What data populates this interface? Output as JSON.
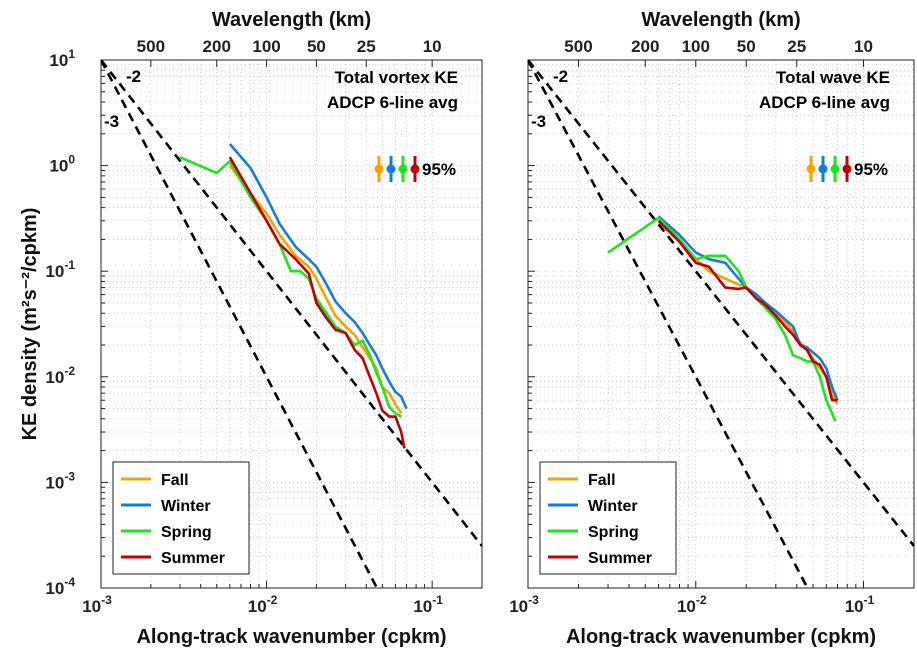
{
  "chart_data": [
    {
      "type": "line",
      "title": "",
      "xlabel": "Along-track wavenumber (cpkm)",
      "ylabel": "KE density (m²s⁻²/cpkm)",
      "top_axis_label": "Wavelength (km)",
      "top_ticks": [
        500,
        200,
        100,
        50,
        25,
        10
      ],
      "xscale": "log",
      "yscale": "log",
      "xlim": [
        0.001,
        0.2
      ],
      "ylim": [
        0.0001,
        10
      ],
      "grid": "minor-dotted",
      "annotation_lines": [
        "Total vortex KE",
        "ADCP 6-line avg"
      ],
      "slope_lines": [
        {
          "label": "-2",
          "slope": -2,
          "x": [
            0.001,
            0.2
          ],
          "y": [
            10,
            0.00025
          ]
        },
        {
          "label": "-3",
          "slope": -3,
          "x": [
            0.001,
            0.0464
          ],
          "y": [
            10,
            0.0001
          ]
        }
      ],
      "ci_label": "95%",
      "legend": {
        "placement": "bottom-left",
        "entries": [
          "Fall",
          "Winter",
          "Spring",
          "Summer"
        ]
      },
      "series": [
        {
          "name": "Fall",
          "color": "#f5a300",
          "x": [
            0.006,
            0.008,
            0.01,
            0.012,
            0.015,
            0.018,
            0.02,
            0.023,
            0.026,
            0.03,
            0.034,
            0.038,
            0.042,
            0.046,
            0.05,
            0.055,
            0.06,
            0.065
          ],
          "y": [
            1.0,
            0.55,
            0.35,
            0.22,
            0.14,
            0.11,
            0.085,
            0.055,
            0.038,
            0.03,
            0.025,
            0.019,
            0.015,
            0.012,
            0.008,
            0.007,
            0.0055,
            0.0045
          ]
        },
        {
          "name": "Winter",
          "color": "#1a7bd6",
          "x": [
            0.006,
            0.008,
            0.01,
            0.012,
            0.015,
            0.018,
            0.02,
            0.023,
            0.026,
            0.03,
            0.034,
            0.038,
            0.042,
            0.046,
            0.05,
            0.055,
            0.06,
            0.065,
            0.07
          ],
          "y": [
            1.6,
            0.95,
            0.5,
            0.28,
            0.17,
            0.13,
            0.11,
            0.075,
            0.052,
            0.04,
            0.033,
            0.026,
            0.02,
            0.016,
            0.012,
            0.009,
            0.0072,
            0.0065,
            0.005
          ]
        },
        {
          "name": "Spring",
          "color": "#22e022",
          "x": [
            0.003,
            0.005,
            0.006,
            0.008,
            0.01,
            0.012,
            0.014,
            0.016,
            0.018,
            0.02,
            0.023,
            0.026,
            0.03,
            0.034,
            0.038,
            0.042,
            0.046,
            0.05,
            0.055,
            0.06,
            0.065
          ],
          "y": [
            1.2,
            0.85,
            1.1,
            0.5,
            0.3,
            0.18,
            0.1,
            0.1,
            0.085,
            0.055,
            0.04,
            0.03,
            0.026,
            0.02,
            0.022,
            0.016,
            0.011,
            0.008,
            0.0052,
            0.0045,
            0.0042
          ]
        },
        {
          "name": "Summer",
          "color": "#c00000",
          "x": [
            0.006,
            0.008,
            0.01,
            0.012,
            0.015,
            0.018,
            0.02,
            0.023,
            0.026,
            0.03,
            0.034,
            0.038,
            0.042,
            0.046,
            0.05,
            0.055,
            0.06,
            0.065,
            0.068
          ],
          "y": [
            1.2,
            0.55,
            0.3,
            0.18,
            0.13,
            0.095,
            0.05,
            0.036,
            0.028,
            0.026,
            0.018,
            0.015,
            0.01,
            0.007,
            0.0048,
            0.0042,
            0.0042,
            0.003,
            0.0021
          ]
        }
      ]
    },
    {
      "type": "line",
      "title": "",
      "xlabel": "Along-track wavenumber (cpkm)",
      "ylabel": "",
      "top_axis_label": "Wavelength (km)",
      "top_ticks": [
        500,
        200,
        100,
        50,
        25,
        10
      ],
      "xscale": "log",
      "yscale": "log",
      "xlim": [
        0.001,
        0.2
      ],
      "ylim": [
        0.0001,
        10
      ],
      "grid": "minor-dotted",
      "annotation_lines": [
        "Total wave KE",
        "ADCP 6-line avg"
      ],
      "slope_lines": [
        {
          "label": "-2",
          "slope": -2,
          "x": [
            0.001,
            0.2
          ],
          "y": [
            10,
            0.00025
          ]
        },
        {
          "label": "-3",
          "slope": -3,
          "x": [
            0.001,
            0.0464
          ],
          "y": [
            10,
            0.0001
          ]
        }
      ],
      "ci_label": "95%",
      "legend": {
        "placement": "bottom-left",
        "entries": [
          "Fall",
          "Winter",
          "Spring",
          "Summer"
        ]
      },
      "series": [
        {
          "name": "Fall",
          "color": "#f5a300",
          "x": [
            0.006,
            0.008,
            0.01,
            0.012,
            0.015,
            0.018,
            0.02,
            0.023,
            0.026,
            0.03,
            0.034,
            0.038,
            0.042,
            0.046,
            0.05,
            0.055,
            0.06,
            0.065,
            0.07
          ],
          "y": [
            0.3,
            0.2,
            0.13,
            0.1,
            0.085,
            0.075,
            0.07,
            0.06,
            0.05,
            0.04,
            0.033,
            0.027,
            0.021,
            0.018,
            0.015,
            0.012,
            0.01,
            0.007,
            0.0055
          ]
        },
        {
          "name": "Winter",
          "color": "#1a7bd6",
          "x": [
            0.006,
            0.008,
            0.01,
            0.012,
            0.015,
            0.018,
            0.02,
            0.023,
            0.026,
            0.03,
            0.034,
            0.038,
            0.042,
            0.046,
            0.05,
            0.055,
            0.06,
            0.065,
            0.07
          ],
          "y": [
            0.33,
            0.22,
            0.15,
            0.13,
            0.12,
            0.085,
            0.07,
            0.06,
            0.05,
            0.042,
            0.035,
            0.03,
            0.02,
            0.019,
            0.017,
            0.015,
            0.012,
            0.008,
            0.006
          ]
        },
        {
          "name": "Spring",
          "color": "#22e022",
          "x": [
            0.003,
            0.006,
            0.008,
            0.01,
            0.012,
            0.015,
            0.018,
            0.02,
            0.023,
            0.026,
            0.03,
            0.034,
            0.038,
            0.042,
            0.046,
            0.05,
            0.055,
            0.06,
            0.065,
            0.068
          ],
          "y": [
            0.15,
            0.32,
            0.2,
            0.13,
            0.14,
            0.14,
            0.1,
            0.07,
            0.055,
            0.045,
            0.035,
            0.025,
            0.016,
            0.015,
            0.014,
            0.014,
            0.01,
            0.006,
            0.0045,
            0.0038
          ]
        },
        {
          "name": "Summer",
          "color": "#c00000",
          "x": [
            0.006,
            0.008,
            0.01,
            0.012,
            0.015,
            0.018,
            0.02,
            0.023,
            0.026,
            0.03,
            0.034,
            0.038,
            0.042,
            0.046,
            0.05,
            0.055,
            0.06,
            0.065,
            0.07
          ],
          "y": [
            0.3,
            0.19,
            0.12,
            0.11,
            0.07,
            0.068,
            0.07,
            0.055,
            0.048,
            0.038,
            0.03,
            0.025,
            0.02,
            0.018,
            0.014,
            0.013,
            0.01,
            0.006,
            0.006
          ]
        }
      ]
    }
  ]
}
